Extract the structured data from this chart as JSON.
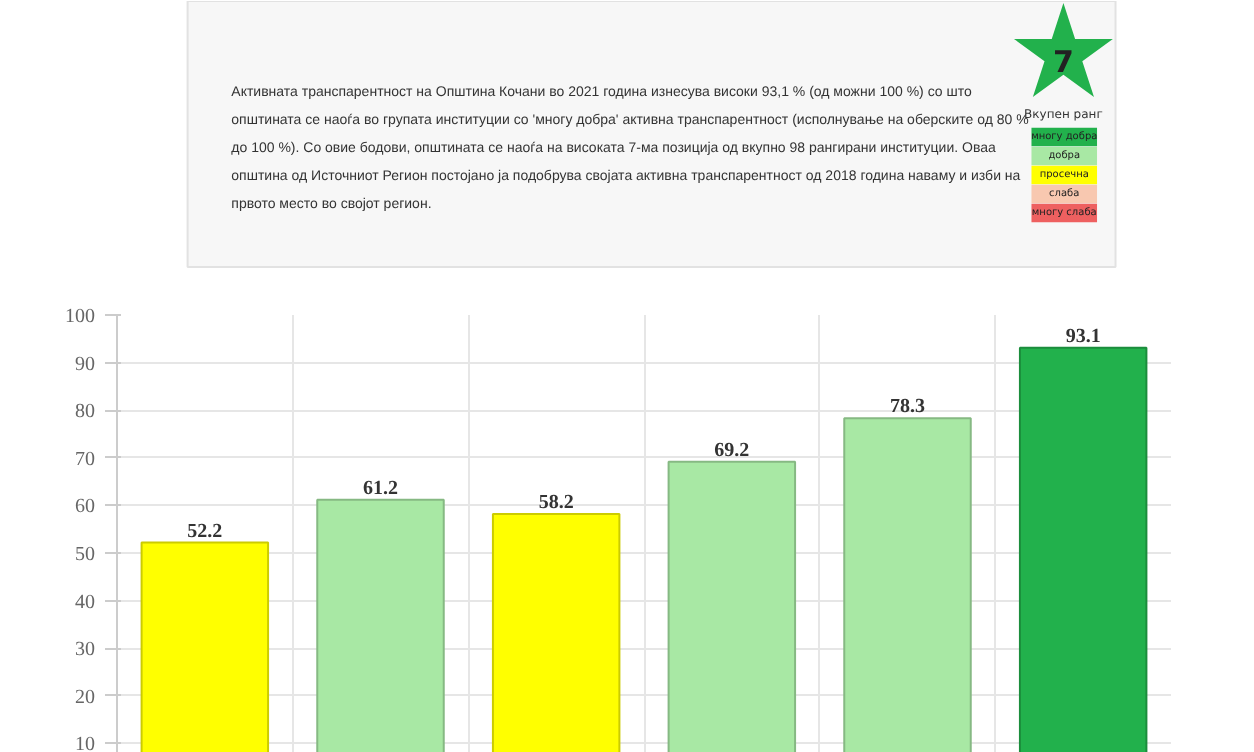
{
  "chart_data": [
    {
      "type": "other",
      "annotations": [
        "Активната транспарентност на Општина Кочани во 2021 година изнесува високи 93,1 % (од можни 100 %) со што",
        "општината се наоѓа во групата институции со 'многу добра' активна транспарентност (исполнување на оберските од 80 %",
        "до 100 %). Со овие бодови, општината се наоѓа на високата 7-ма позиција од вкупно 98 рангирани институции. Оваа",
        "општина од Источниот Регион постојано ја подобрува својата активна транспарентност од 2018 година наваму и изби на",
        "првото место во својот регион.",
        "7",
        "Вкупен ранг"
      ],
      "categories": [
        "многу добра",
        "добра",
        "просечна",
        "слаба",
        "многу слаба"
      ],
      "colors": [
        "#22b14c",
        "#a8e8a4",
        "#ffff00",
        "#f8c8b0",
        "#ee6060"
      ]
    },
    {
      "type": "bar",
      "categories": [
        null,
        null,
        null,
        null,
        null,
        null
      ],
      "values": [
        52.2,
        61.2,
        58.2,
        69.2,
        78.3,
        93.1
      ],
      "colors": [
        "#ffff00",
        "#a8e8a4",
        "#ffff00",
        "#a8e8a4",
        "#a8e8a4",
        "#22b14c"
      ],
      "data_labels": true,
      "ylim": [
        8,
        100
      ],
      "yticks": [
        10,
        20,
        30,
        40,
        50,
        60,
        70,
        80,
        90,
        100
      ],
      "grid": true,
      "tick_labels": "y"
    }
  ]
}
